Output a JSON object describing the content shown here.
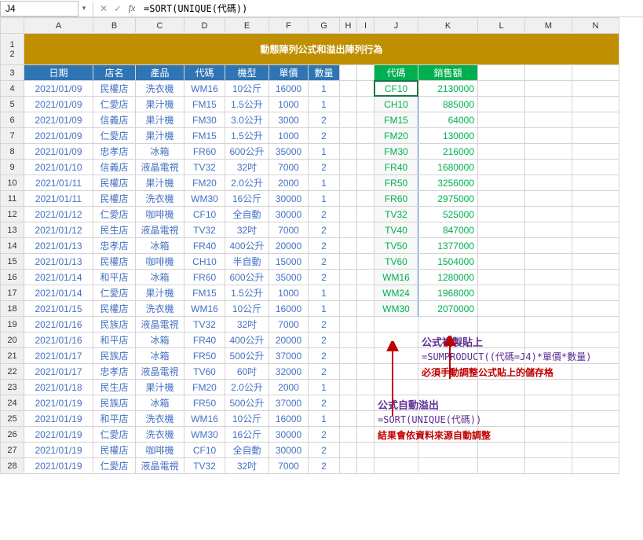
{
  "formula_bar": {
    "cell_ref": "J4",
    "formula": "=SORT(UNIQUE(代碼))"
  },
  "columns": [
    "A",
    "B",
    "C",
    "D",
    "E",
    "F",
    "G",
    "H",
    "I",
    "J",
    "K",
    "L",
    "M",
    "N"
  ],
  "title": "動態陣列公式和溢出陣列行為",
  "headers_main": [
    "日期",
    "店名",
    "產品",
    "代碼",
    "機型",
    "單價",
    "數量"
  ],
  "headers_right": [
    "代碼",
    "銷售額"
  ],
  "rows": [
    {
      "n": 4,
      "d": [
        "2021/01/09",
        "民權店",
        "洗衣機",
        "WM16",
        "10公斤",
        "16000",
        "1"
      ],
      "r": [
        "CF10",
        "2130000"
      ]
    },
    {
      "n": 5,
      "d": [
        "2021/01/09",
        "仁愛店",
        "果汁機",
        "FM15",
        "1.5公升",
        "1000",
        "1"
      ],
      "r": [
        "CH10",
        "885000"
      ]
    },
    {
      "n": 6,
      "d": [
        "2021/01/09",
        "信義店",
        "果汁機",
        "FM30",
        "3.0公升",
        "3000",
        "2"
      ],
      "r": [
        "FM15",
        "64000"
      ]
    },
    {
      "n": 7,
      "d": [
        "2021/01/09",
        "仁愛店",
        "果汁機",
        "FM15",
        "1.5公升",
        "1000",
        "2"
      ],
      "r": [
        "FM20",
        "130000"
      ]
    },
    {
      "n": 8,
      "d": [
        "2021/01/09",
        "忠孝店",
        "冰箱",
        "FR60",
        "600公升",
        "35000",
        "1"
      ],
      "r": [
        "FM30",
        "216000"
      ]
    },
    {
      "n": 9,
      "d": [
        "2021/01/10",
        "信義店",
        "液晶電視",
        "TV32",
        "32吋",
        "7000",
        "2"
      ],
      "r": [
        "FR40",
        "1680000"
      ]
    },
    {
      "n": 10,
      "d": [
        "2021/01/11",
        "民權店",
        "果汁機",
        "FM20",
        "2.0公升",
        "2000",
        "1"
      ],
      "r": [
        "FR50",
        "3256000"
      ]
    },
    {
      "n": 11,
      "d": [
        "2021/01/11",
        "民權店",
        "洗衣機",
        "WM30",
        "16公斤",
        "30000",
        "1"
      ],
      "r": [
        "FR60",
        "2975000"
      ]
    },
    {
      "n": 12,
      "d": [
        "2021/01/12",
        "仁愛店",
        "咖啡機",
        "CF10",
        "全自動",
        "30000",
        "2"
      ],
      "r": [
        "TV32",
        "525000"
      ]
    },
    {
      "n": 13,
      "d": [
        "2021/01/12",
        "民生店",
        "液晶電視",
        "TV32",
        "32吋",
        "7000",
        "2"
      ],
      "r": [
        "TV40",
        "847000"
      ]
    },
    {
      "n": 14,
      "d": [
        "2021/01/13",
        "忠孝店",
        "冰箱",
        "FR40",
        "400公升",
        "20000",
        "2"
      ],
      "r": [
        "TV50",
        "1377000"
      ]
    },
    {
      "n": 15,
      "d": [
        "2021/01/13",
        "民權店",
        "咖啡機",
        "CH10",
        "半自動",
        "15000",
        "2"
      ],
      "r": [
        "TV60",
        "1504000"
      ]
    },
    {
      "n": 16,
      "d": [
        "2021/01/14",
        "和平店",
        "冰箱",
        "FR60",
        "600公升",
        "35000",
        "2"
      ],
      "r": [
        "WM16",
        "1280000"
      ]
    },
    {
      "n": 17,
      "d": [
        "2021/01/14",
        "仁愛店",
        "果汁機",
        "FM15",
        "1.5公升",
        "1000",
        "1"
      ],
      "r": [
        "WM24",
        "1968000"
      ]
    },
    {
      "n": 18,
      "d": [
        "2021/01/15",
        "民權店",
        "洗衣機",
        "WM16",
        "10公斤",
        "16000",
        "1"
      ],
      "r": [
        "WM30",
        "2070000"
      ]
    },
    {
      "n": 19,
      "d": [
        "2021/01/16",
        "民族店",
        "液晶電視",
        "TV32",
        "32吋",
        "7000",
        "2"
      ],
      "r": [
        "",
        ""
      ]
    },
    {
      "n": 20,
      "d": [
        "2021/01/16",
        "和平店",
        "冰箱",
        "FR40",
        "400公升",
        "20000",
        "2"
      ],
      "r": [
        "",
        ""
      ]
    },
    {
      "n": 21,
      "d": [
        "2021/01/17",
        "民族店",
        "冰箱",
        "FR50",
        "500公升",
        "37000",
        "2"
      ],
      "r": [
        "",
        ""
      ]
    },
    {
      "n": 22,
      "d": [
        "2021/01/17",
        "忠孝店",
        "液晶電視",
        "TV60",
        "60吋",
        "32000",
        "2"
      ],
      "r": [
        "",
        ""
      ]
    },
    {
      "n": 23,
      "d": [
        "2021/01/18",
        "民生店",
        "果汁機",
        "FM20",
        "2.0公升",
        "2000",
        "1"
      ],
      "r": [
        "",
        ""
      ]
    },
    {
      "n": 24,
      "d": [
        "2021/01/19",
        "民族店",
        "冰箱",
        "FR50",
        "500公升",
        "37000",
        "2"
      ],
      "r": [
        "",
        ""
      ]
    },
    {
      "n": 25,
      "d": [
        "2021/01/19",
        "和平店",
        "洗衣機",
        "WM16",
        "10公斤",
        "16000",
        "1"
      ],
      "r": [
        "",
        ""
      ]
    },
    {
      "n": 26,
      "d": [
        "2021/01/19",
        "仁愛店",
        "洗衣機",
        "WM30",
        "16公斤",
        "30000",
        "2"
      ],
      "r": [
        "",
        ""
      ]
    },
    {
      "n": 27,
      "d": [
        "2021/01/19",
        "民權店",
        "咖啡機",
        "CF10",
        "全自動",
        "30000",
        "2"
      ],
      "r": [
        "",
        ""
      ]
    },
    {
      "n": 28,
      "d": [
        "2021/01/19",
        "仁愛店",
        "液晶電視",
        "TV32",
        "32吋",
        "7000",
        "2"
      ],
      "r": [
        "",
        ""
      ]
    }
  ],
  "annotations": {
    "copy_label": "公式複製貼上",
    "copy_formula": "=SUMPRODUCT((代碼=J4)*單價*數量)",
    "copy_note": "必須手動調整公式貼上的儲存格",
    "spill_label": "公式自動溢出",
    "spill_formula": "=SORT(UNIQUE(代碼))",
    "spill_note": "結果會依資料來源自動調整"
  },
  "colors": {
    "title_bg": "#bf8f00",
    "hdr_blue": "#2f75b5",
    "hdr_green": "#00b050",
    "data_blue": "#4472c4",
    "data_green": "#00b050",
    "arrow": "#c00000"
  }
}
